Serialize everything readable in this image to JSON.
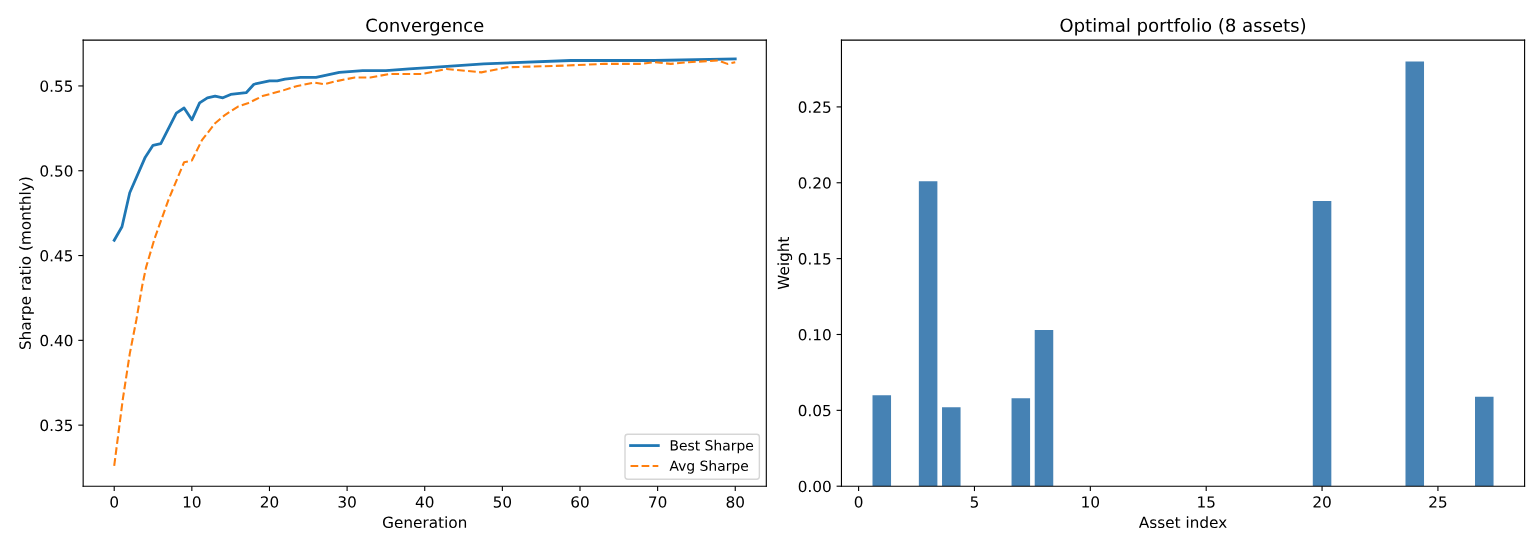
{
  "chart_data": [
    {
      "type": "line",
      "title": "Convergence",
      "xlabel": "Generation",
      "ylabel": "Sharpe ratio (monthly)",
      "xlim": [
        -4,
        84
      ],
      "xticks": [
        0,
        10,
        20,
        30,
        40,
        50,
        60,
        70,
        80
      ],
      "ylim": [
        0.314,
        0.577
      ],
      "yticks": [
        {
          "value": 0.35,
          "label": "0.35"
        },
        {
          "value": 0.4,
          "label": "0.40"
        },
        {
          "value": 0.45,
          "label": "0.45"
        },
        {
          "value": 0.5,
          "label": "0.50"
        },
        {
          "value": 0.55,
          "label": "0.55"
        }
      ],
      "legend": "bottom right",
      "grid": false,
      "series": [
        {
          "name": "Best Sharpe",
          "color": "#1f77b4",
          "line_style": "solid",
          "x": [
            0,
            1,
            2,
            4,
            5,
            6,
            8,
            9,
            10,
            11,
            12,
            13,
            14,
            15,
            17,
            18,
            20,
            21,
            22,
            24,
            26,
            29,
            32,
            35,
            38,
            41,
            47.6,
            58.8,
            69.6,
            80
          ],
          "values": [
            0.459,
            0.467,
            0.487,
            0.508,
            0.515,
            0.516,
            0.534,
            0.537,
            0.53,
            0.54,
            0.543,
            0.544,
            0.543,
            0.545,
            0.546,
            0.551,
            0.553,
            0.553,
            0.554,
            0.555,
            0.555,
            0.558,
            0.559,
            0.559,
            0.56,
            0.561,
            0.563,
            0.565,
            0.565,
            0.566
          ]
        },
        {
          "name": "Avg Sharpe",
          "color": "#ff7f0e",
          "line_style": "dashed",
          "x": [
            0,
            1.1,
            2,
            2.85,
            3.6,
            4.1,
            5.2,
            7,
            9,
            10,
            11.3,
            13,
            14.3,
            16,
            17.3,
            19.1,
            21.5,
            23.6,
            25.8,
            27,
            28.8,
            31,
            33,
            35.4,
            37.5,
            39.6,
            42.8,
            47.3,
            50.6,
            58,
            63.1,
            67.9,
            69.6,
            71.7,
            74,
            77.8,
            79,
            80
          ],
          "values": [
            0.326,
            0.365,
            0.392,
            0.412,
            0.432,
            0.443,
            0.46,
            0.483,
            0.505,
            0.506,
            0.518,
            0.528,
            0.533,
            0.538,
            0.54,
            0.544,
            0.547,
            0.55,
            0.552,
            0.551,
            0.553,
            0.555,
            0.555,
            0.557,
            0.557,
            0.557,
            0.56,
            0.558,
            0.561,
            0.562,
            0.563,
            0.563,
            0.564,
            0.563,
            0.564,
            0.565,
            0.563,
            0.564
          ]
        }
      ]
    },
    {
      "type": "bar",
      "title": "Optimal portfolio (8 assets)",
      "xlabel": "Asset index",
      "ylabel": "Weight",
      "xlim": [
        -0.74,
        28.74
      ],
      "xticks": [
        0,
        5,
        10,
        15,
        20,
        25
      ],
      "ylim": [
        0,
        0.294
      ],
      "yticks": [
        {
          "value": 0,
          "label": "0.00"
        },
        {
          "value": 0.05,
          "label": "0.05"
        },
        {
          "value": 0.1,
          "label": "0.10"
        },
        {
          "value": 0.15,
          "label": "0.15"
        },
        {
          "value": 0.2,
          "label": "0.20"
        },
        {
          "value": 0.25,
          "label": "0.25"
        }
      ],
      "grid": false,
      "x": [
        1,
        3,
        4,
        7,
        8,
        20,
        24,
        27
      ],
      "values": [
        0.06,
        0.201,
        0.052,
        0.058,
        0.103,
        0.188,
        0.28,
        0.059
      ],
      "color": "#4682b4"
    }
  ]
}
